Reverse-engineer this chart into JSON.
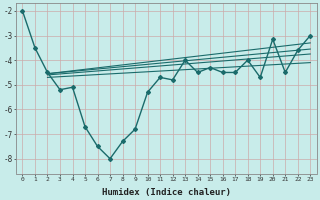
{
  "xlabel": "Humidex (Indice chaleur)",
  "bg_color": "#c8ecea",
  "line_color": "#1a6b6b",
  "grid_color": "#b0d8d4",
  "xlim": [
    -0.5,
    23.5
  ],
  "ylim": [
    -8.6,
    -1.7
  ],
  "yticks": [
    -8,
    -7,
    -6,
    -5,
    -4,
    -3,
    -2
  ],
  "xticks": [
    0,
    1,
    2,
    3,
    4,
    5,
    6,
    7,
    8,
    9,
    10,
    11,
    12,
    13,
    14,
    15,
    16,
    17,
    18,
    19,
    20,
    21,
    22,
    23
  ],
  "curve1_x": [
    0,
    1,
    2,
    3,
    4,
    5,
    6,
    7,
    8,
    9,
    10,
    11,
    12,
    13,
    14,
    15,
    16,
    17,
    18,
    19,
    20,
    21,
    22,
    23
  ],
  "curve1_y": [
    -2.0,
    -3.5,
    -4.5,
    -5.2,
    -5.1,
    -6.7,
    -7.5,
    -8.0,
    -7.3,
    -6.8,
    -5.3,
    -4.7,
    -4.8,
    -4.0,
    -4.5,
    -4.3,
    -4.5,
    -4.5,
    -4.0,
    -4.7,
    -3.15,
    -4.5,
    -3.6,
    -3.0
  ],
  "line2_x": [
    2,
    23
  ],
  "line2_y": [
    -4.55,
    -3.3
  ],
  "line3_x": [
    2,
    23
  ],
  "line3_y": [
    -4.55,
    -3.55
  ],
  "line4_x": [
    2,
    23
  ],
  "line4_y": [
    -4.6,
    -3.75
  ],
  "line5_x": [
    2,
    23
  ],
  "line5_y": [
    -4.7,
    -4.1
  ]
}
